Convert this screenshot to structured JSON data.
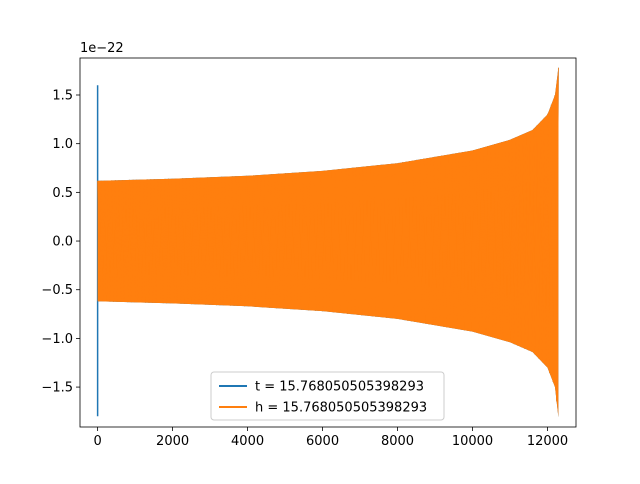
{
  "chart_data": {
    "type": "line",
    "title": "",
    "xlabel": "",
    "ylabel": "",
    "y_offset_label": "1e−22",
    "xlim": [
      -470,
      12760
    ],
    "ylim": [
      -1.91,
      1.88
    ],
    "grid": false,
    "legend_position": "lower center",
    "x_ticks": [
      0,
      2000,
      4000,
      6000,
      8000,
      10000,
      12000
    ],
    "x_tick_labels": [
      "0",
      "2000",
      "4000",
      "6000",
      "8000",
      "10000",
      "12000"
    ],
    "y_ticks": [
      -1.5,
      -1.0,
      -0.5,
      0.0,
      0.5,
      1.0,
      1.5
    ],
    "y_tick_labels": [
      "−1.5",
      "−1.0",
      "−0.5",
      "0.0",
      "0.5",
      "1.0",
      "1.5"
    ],
    "series": [
      {
        "name": "t = 15.768050505398293",
        "color": "#1f77b4",
        "x": [
          0,
          0,
          0,
          100,
          2000,
          4000,
          6000,
          8000,
          10000,
          11000,
          11600,
          12000,
          12200,
          12290
        ],
        "y_upper": [
          1.6,
          -1.8,
          0.62,
          0.62,
          0.64,
          0.67,
          0.72,
          0.8,
          0.93,
          1.04,
          1.14,
          1.3,
          1.5,
          1.78
        ],
        "y_lower": [
          1.6,
          -1.8,
          -0.62,
          -0.62,
          -0.64,
          -0.67,
          -0.72,
          -0.8,
          -0.93,
          -1.04,
          -1.14,
          -1.3,
          -1.5,
          -1.81
        ]
      },
      {
        "name": "h = 15.768050505398293",
        "color": "#ff7f0e",
        "x": [
          0,
          100,
          2000,
          4000,
          6000,
          8000,
          10000,
          11000,
          11600,
          12000,
          12200,
          12290
        ],
        "y_upper": [
          0.62,
          0.62,
          0.64,
          0.67,
          0.72,
          0.8,
          0.93,
          1.04,
          1.14,
          1.3,
          1.5,
          1.78
        ],
        "y_lower": [
          -0.62,
          -0.62,
          -0.64,
          -0.67,
          -0.72,
          -0.8,
          -0.93,
          -1.04,
          -1.14,
          -1.3,
          -1.5,
          -1.81
        ]
      }
    ]
  }
}
